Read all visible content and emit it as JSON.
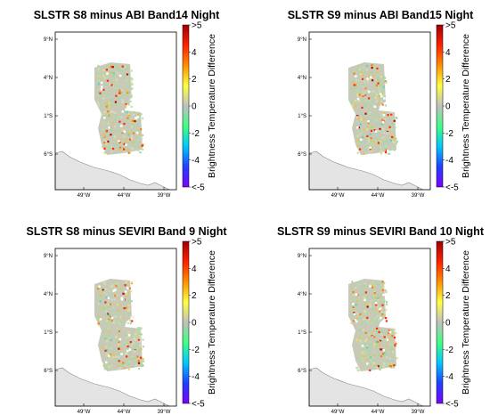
{
  "chart_data": [
    {
      "type": "heatmap",
      "title": "SLSTR S8 minus ABI Band14 Night",
      "lat_ticks": [
        "9°N",
        "4°N",
        "1°S",
        "6°S"
      ],
      "lon_ticks": [
        "49°W",
        "44°W",
        "39°W"
      ],
      "colorbar": {
        "label": "Brightness Temperature Difference",
        "range": [
          -5,
          5
        ],
        "tick_labels": [
          ">5",
          "4",
          "2",
          "0",
          "-2",
          "-4",
          "<-5"
        ]
      }
    },
    {
      "type": "heatmap",
      "title": "SLSTR S9 minus ABI Band15 Night",
      "lat_ticks": [
        "9°N",
        "4°N",
        "1°S",
        "6°S"
      ],
      "lon_ticks": [
        "49°W",
        "44°W",
        "39°W"
      ],
      "colorbar": {
        "label": "Brightness Temperature Difference",
        "range": [
          -5,
          5
        ],
        "tick_labels": [
          ">5",
          "4",
          "2",
          "0",
          "-2",
          "-4",
          "<-5"
        ]
      }
    },
    {
      "type": "heatmap",
      "title": "SLSTR S8 minus SEVIRI Band 9 Night",
      "lat_ticks": [
        "9°N",
        "4°N",
        "1°S",
        "6°S"
      ],
      "lon_ticks": [
        "49°W",
        "44°W",
        "39°W"
      ],
      "colorbar": {
        "label": "Brightness Temperature Difference",
        "range": [
          -5,
          5
        ],
        "tick_labels": [
          ">5",
          "4",
          "2",
          "0",
          "-2",
          "-4",
          "<-5"
        ]
      }
    },
    {
      "type": "heatmap",
      "title": "SLSTR S9 minus SEVIRI Band 10 Night",
      "lat_ticks": [
        "9°N",
        "4°N",
        "1°S",
        "6°S"
      ],
      "lon_ticks": [
        "49°W",
        "44°W",
        "39°W"
      ],
      "colorbar": {
        "label": "Brightness Temperature Difference",
        "range": [
          -5,
          5
        ],
        "tick_labels": [
          ">5",
          "4",
          "2",
          "0",
          "-2",
          "-4",
          "<-5"
        ]
      }
    }
  ],
  "colors": {
    "colormap": [
      "#7b00ff",
      "#2040ff",
      "#00c8ff",
      "#40ff80",
      "#c0c0c0",
      "#ffff40",
      "#ff9000",
      "#ff2000",
      "#a00000"
    ],
    "land": "#e4e4e4",
    "data_neutral": "#c8cab8",
    "data_green": "#a8d8a0"
  }
}
